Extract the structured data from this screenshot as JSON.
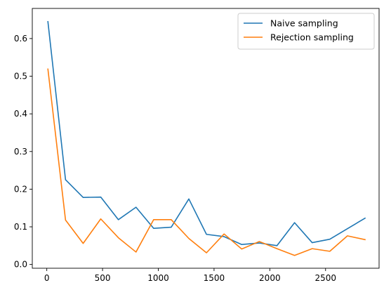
{
  "chart_data": {
    "type": "line",
    "title": "",
    "xlabel": "",
    "ylabel": "",
    "xlim": [
      -130,
      2980
    ],
    "ylim": [
      -0.01,
      0.68
    ],
    "x_ticks": [
      0,
      500,
      1000,
      1500,
      2000,
      2500
    ],
    "y_ticks": [
      0.0,
      0.1,
      0.2,
      0.3,
      0.4,
      0.5,
      0.6
    ],
    "grid": false,
    "legend_position": "top-right",
    "x": [
      10,
      168,
      326,
      484,
      642,
      800,
      958,
      1116,
      1274,
      1432,
      1590,
      1748,
      1906,
      2064,
      2222,
      2380,
      2538,
      2696,
      2854
    ],
    "series": [
      {
        "name": "Naive sampling",
        "color": "#1f77b4",
        "values": [
          0.645,
          0.225,
          0.178,
          0.179,
          0.119,
          0.152,
          0.096,
          0.099,
          0.174,
          0.08,
          0.074,
          0.053,
          0.057,
          0.05,
          0.111,
          0.058,
          0.067,
          0.095,
          0.123
        ]
      },
      {
        "name": "Rejection sampling",
        "color": "#ff7f0e",
        "values": [
          0.519,
          0.118,
          0.056,
          0.121,
          0.071,
          0.033,
          0.119,
          0.119,
          0.069,
          0.031,
          0.081,
          0.041,
          0.061,
          0.042,
          0.024,
          0.042,
          0.035,
          0.076,
          0.066
        ]
      }
    ]
  }
}
